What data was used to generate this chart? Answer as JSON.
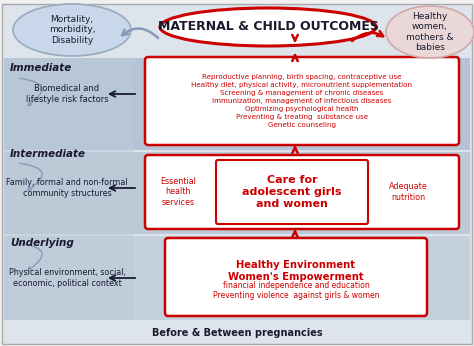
{
  "fig_width": 4.74,
  "fig_height": 3.46,
  "bg_color": "#f0f0f0",
  "title_text": "MATERNAL & CHILD OUTCOMES",
  "left_oval_text": "Mortality,\nmorbidity,\nDisability",
  "right_oval_text": "Healthy\nwomen,\nmothers &\nbabies",
  "immediate_label": "Immediate",
  "intermediate_label": "Intermediate",
  "underlying_label": "Underlying",
  "left_text_immediate": "Biomedical and\nlifestyle risk factors",
  "left_text_intermediate": "Family, formal and non-formal\ncommunity structures",
  "left_text_underlying": "Physical environment, social,\neconomic, political context",
  "immediate_box_text": "Reproductive planning, birth spacing, contraceptive use\nHealthy diet, physical activity, micronutrient supplementation\nScreening & management of chronic diseases\nImmunization, management of infectious diseases\nOptimizing psychological health\nPreventing & treating  substance use\nGenetic counseling",
  "care_box_text": "Care for\nadolescent girls\nand women",
  "essential_box_text": "Essential\nhealth\nservices",
  "nutrition_box_text": "Adequate\nnutrition",
  "underlying_box_bold": "Healthy Environment\nWomen's Empowerment",
  "underlying_box_normal": "financial independence and education\nPreventing violence  against girls & women",
  "bottom_label": "Before & Between pregnancies",
  "red": "#cc0000",
  "band_top_color": "#a8b8cc",
  "band_mid_color": "#b0bfcf",
  "band_bot_color": "#b8c8d8",
  "left_panel_color": "#b0c0d0",
  "oval_left_color": "#c8d8e8",
  "oval_right_color": "#e8d0d4",
  "white": "#ffffff",
  "dark_text": "#1a1a2e",
  "arrow_gray": "#8899bb"
}
